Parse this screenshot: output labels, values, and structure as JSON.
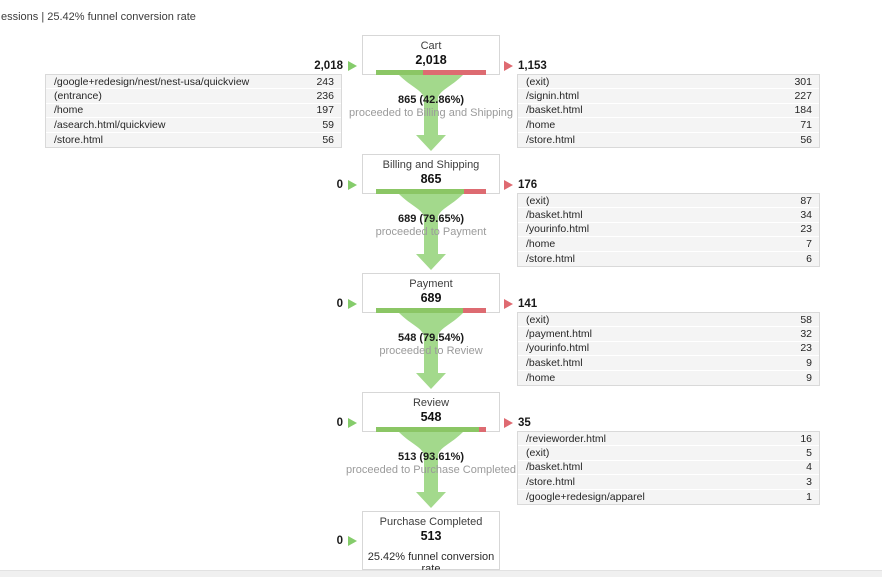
{
  "header": {
    "summary": "essions | 25.42% funnel conversion rate"
  },
  "colors": {
    "bar_green": "#8bc665",
    "bar_red": "#dd6b71",
    "funnel_green": "#a3d98c",
    "entry_arrow_green": "#85cc6b",
    "exit_arrow_red": "#df6a71",
    "row_bg": "#f4f4f4",
    "box_border": "#d7d7d7",
    "muted": "#9b9b9b",
    "track": "#f0f0f0"
  },
  "stages": [
    {
      "title": "Cart",
      "value": "2,018",
      "green_pct": 42.86,
      "entry": {
        "total": "2,018",
        "rows": [
          {
            "path": "/google+redesign/nest/nest-usa/quickview",
            "value": "243"
          },
          {
            "path": "(entrance)",
            "value": "236"
          },
          {
            "path": "/home",
            "value": "197"
          },
          {
            "path": "/asearch.html/quickview",
            "value": "59"
          },
          {
            "path": "/store.html",
            "value": "56"
          }
        ]
      },
      "exit": {
        "total": "1,153",
        "rows": [
          {
            "path": "(exit)",
            "value": "301"
          },
          {
            "path": "/signin.html",
            "value": "227"
          },
          {
            "path": "/basket.html",
            "value": "184"
          },
          {
            "path": "/home",
            "value": "71"
          },
          {
            "path": "/store.html",
            "value": "56"
          }
        ]
      },
      "transition": {
        "bold": "865 (42.86%)",
        "note": "proceeded to Billing and Shipping"
      }
    },
    {
      "title": "Billing and Shipping",
      "value": "865",
      "green_pct": 79.65,
      "entry": {
        "total": "0"
      },
      "exit": {
        "total": "176",
        "rows": [
          {
            "path": "(exit)",
            "value": "87"
          },
          {
            "path": "/basket.html",
            "value": "34"
          },
          {
            "path": "/yourinfo.html",
            "value": "23"
          },
          {
            "path": "/home",
            "value": "7"
          },
          {
            "path": "/store.html",
            "value": "6"
          }
        ]
      },
      "transition": {
        "bold": "689 (79.65%)",
        "note": "proceeded to Payment"
      }
    },
    {
      "title": "Payment",
      "value": "689",
      "green_pct": 79.54,
      "entry": {
        "total": "0"
      },
      "exit": {
        "total": "141",
        "rows": [
          {
            "path": "(exit)",
            "value": "58"
          },
          {
            "path": "/payment.html",
            "value": "32"
          },
          {
            "path": "/yourinfo.html",
            "value": "23"
          },
          {
            "path": "/basket.html",
            "value": "9"
          },
          {
            "path": "/home",
            "value": "9"
          }
        ]
      },
      "transition": {
        "bold": "548 (79.54%)",
        "note": "proceeded to Review"
      }
    },
    {
      "title": "Review",
      "value": "548",
      "green_pct": 93.61,
      "entry": {
        "total": "0"
      },
      "exit": {
        "total": "35",
        "rows": [
          {
            "path": "/revieworder.html",
            "value": "16"
          },
          {
            "path": "(exit)",
            "value": "5"
          },
          {
            "path": "/basket.html",
            "value": "4"
          },
          {
            "path": "/store.html",
            "value": "3"
          },
          {
            "path": "/google+redesign/apparel",
            "value": "1"
          }
        ]
      },
      "transition": {
        "bold": "513 (93.61%)",
        "note": "proceeded to Purchase Completed"
      }
    },
    {
      "title": "Purchase Completed",
      "value": "513",
      "entry": {
        "total": "0"
      },
      "note": "25.42% funnel conversion rate"
    }
  ],
  "chart_data": {
    "type": "funnel",
    "title": "essions | 25.42% funnel conversion rate",
    "stages": [
      "Cart",
      "Billing and Shipping",
      "Payment",
      "Review",
      "Purchase Completed"
    ],
    "values": [
      2018,
      865,
      689,
      548,
      513
    ],
    "proceeded": [
      865,
      689,
      548,
      513,
      null
    ],
    "proceeded_pct": [
      42.86,
      79.65,
      79.54,
      93.61,
      null
    ],
    "abandoned": [
      1153,
      176,
      141,
      35,
      null
    ],
    "entered": [
      2018,
      0,
      0,
      0,
      0
    ],
    "funnel_conversion_rate": "25.42%",
    "entry_breakdown_cart": [
      [
        "/google+redesign/nest/nest-usa/quickview",
        243
      ],
      [
        "(entrance)",
        236
      ],
      [
        "/home",
        197
      ],
      [
        "/asearch.html/quickview",
        59
      ],
      [
        "/store.html",
        56
      ]
    ],
    "exit_breakdowns": [
      [
        [
          "(exit)",
          301
        ],
        [
          "/signin.html",
          227
        ],
        [
          "/basket.html",
          184
        ],
        [
          "/home",
          71
        ],
        [
          "/store.html",
          56
        ]
      ],
      [
        [
          "(exit)",
          87
        ],
        [
          "/basket.html",
          34
        ],
        [
          "/yourinfo.html",
          23
        ],
        [
          "/home",
          7
        ],
        [
          "/store.html",
          6
        ]
      ],
      [
        [
          "(exit)",
          58
        ],
        [
          "/payment.html",
          32
        ],
        [
          "/yourinfo.html",
          23
        ],
        [
          "/basket.html",
          9
        ],
        [
          "/home",
          9
        ]
      ],
      [
        [
          "/revieworder.html",
          16
        ],
        [
          "(exit)",
          5
        ],
        [
          "/basket.html",
          4
        ],
        [
          "/store.html",
          3
        ],
        [
          "/google+redesign/apparel",
          1
        ]
      ]
    ]
  }
}
